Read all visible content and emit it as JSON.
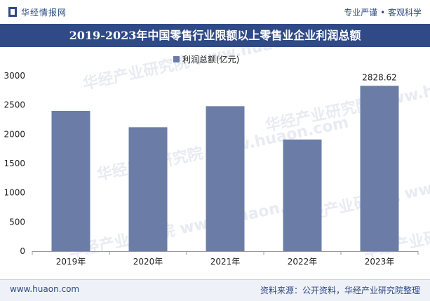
{
  "header": {
    "brand": "华经情报网",
    "slogan": "专业严谨 • 客观科学"
  },
  "watermark": "华经产业研究院 www.huaon.com",
  "footer": {
    "site": "www.huaon.com",
    "source": "资料来源：公开资料，华经产业研究院整理"
  },
  "colors": {
    "bar": "#6b7da6",
    "title_bg": "#2f4a86",
    "text": "#222222"
  },
  "chart_data": {
    "type": "bar",
    "title": "2019-2023年中国零售行业限额以上零售业企业利润总额",
    "categories": [
      "2019年",
      "2020年",
      "2021年",
      "2022年",
      "2023年"
    ],
    "series": [
      {
        "name": "利润总额(亿元)",
        "values": [
          2400,
          2120,
          2480,
          1910,
          2828.62
        ]
      }
    ],
    "data_labels": [
      "",
      "",
      "",
      "",
      "2828.62"
    ],
    "yticks": [
      0,
      500,
      1000,
      1500,
      2000,
      2500,
      3000
    ],
    "ylim": [
      0,
      3000
    ],
    "xlabel": "",
    "ylabel": "",
    "legend_position": "top"
  }
}
